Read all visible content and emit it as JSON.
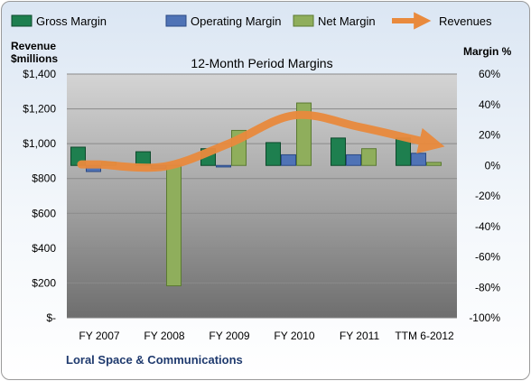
{
  "chart_data": {
    "type": "bar",
    "title": "12-Month Period Margins",
    "company": "Loral Space & Communications",
    "categories": [
      "FY 2007",
      "FY 2008",
      "FY 2009",
      "FY 2010",
      "FY 2011",
      "TTM 6-2012"
    ],
    "left_axis": {
      "label_line1": "Revenue",
      "label_line2": "$millions",
      "ticks": [
        "$1,400",
        "$1,200",
        "$1,000",
        "$800",
        "$600",
        "$400",
        "$200",
        "$-"
      ],
      "range": [
        0,
        1400
      ]
    },
    "right_axis": {
      "label": "Margin %",
      "ticks": [
        "60%",
        "40%",
        "20%",
        "0%",
        "-20%",
        "-40%",
        "-60%",
        "-80%",
        "-100%"
      ],
      "range": [
        -100,
        60
      ]
    },
    "series": [
      {
        "name": "Gross Margin",
        "color": "#1e7f4f",
        "values": [
          12,
          9,
          11,
          15,
          18,
          18
        ]
      },
      {
        "name": "Operating Margin",
        "color": "#4f73b6",
        "values": [
          -4,
          -2,
          -1,
          7,
          7,
          8
        ]
      },
      {
        "name": "Net Margin",
        "color": "#8fae5c",
        "values": [
          2,
          -79,
          23,
          41,
          11,
          2
        ]
      }
    ],
    "revenues": {
      "name": "Revenues",
      "color": "#e98a3d",
      "values": [
        881,
        869,
        1002,
        1163,
        1096,
        1010
      ]
    },
    "grid": true,
    "legend": "top"
  }
}
